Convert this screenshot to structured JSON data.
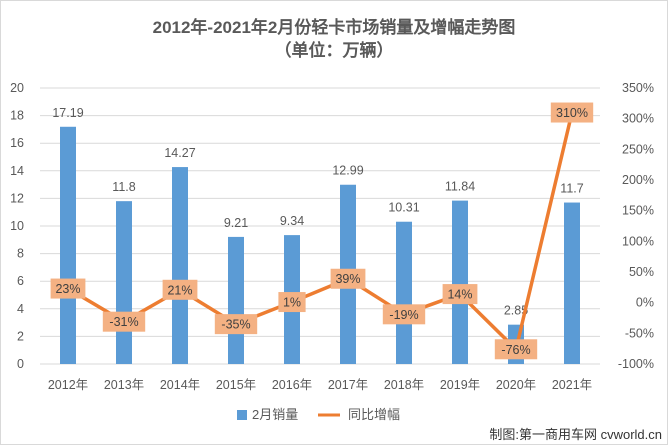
{
  "chart_data": {
    "type": "bar",
    "title": "2012年-2021年2月份轻卡市场销量及增幅走势图",
    "subtitle": "（单位：万辆）",
    "categories": [
      "2012年",
      "2013年",
      "2014年",
      "2015年",
      "2016年",
      "2017年",
      "2018年",
      "2019年",
      "2020年",
      "2021年"
    ],
    "series": [
      {
        "name": "2月销量",
        "type": "bar",
        "axis": "left",
        "values": [
          17.19,
          11.8,
          14.27,
          9.21,
          9.34,
          12.99,
          10.31,
          11.84,
          2.85,
          11.7
        ],
        "labels": [
          "17.19",
          "11.8",
          "14.27",
          "9.21",
          "9.34",
          "12.99",
          "10.31",
          "11.84",
          "2.85",
          "11.7"
        ]
      },
      {
        "name": "同比增幅",
        "type": "line",
        "axis": "right",
        "values": [
          23,
          -31,
          21,
          -35,
          1,
          39,
          -19,
          14,
          -76,
          310
        ],
        "labels": [
          "23%",
          "-31%",
          "21%",
          "-35%",
          "1%",
          "39%",
          "-19%",
          "14%",
          "-76%",
          "310%"
        ]
      }
    ],
    "y_left": {
      "min": 0,
      "max": 20,
      "step": 2,
      "ticks": [
        "0",
        "2",
        "4",
        "6",
        "8",
        "10",
        "12",
        "14",
        "16",
        "18",
        "20"
      ]
    },
    "y_right": {
      "min": -100,
      "max": 350,
      "step": 50,
      "ticks": [
        "-100%",
        "-50%",
        "0%",
        "50%",
        "100%",
        "150%",
        "200%",
        "250%",
        "300%",
        "350%"
      ]
    },
    "legend_position": "bottom",
    "colors": {
      "bar": "#5b9bd5",
      "line": "#ed7d31",
      "label_bg": "#f4b183",
      "grid": "#d9d9d9",
      "text": "#595959"
    },
    "source_note": "制图:第一商用车网 cvworld.cn"
  }
}
